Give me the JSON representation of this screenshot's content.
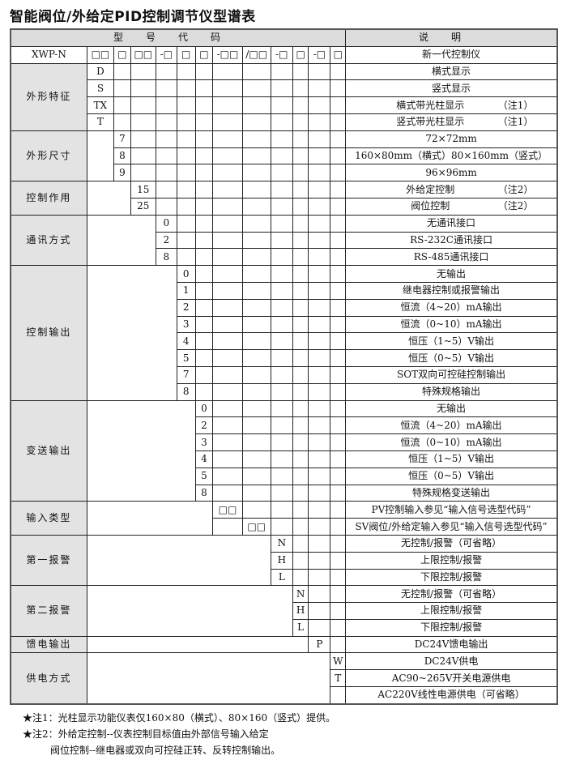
{
  "title": "智能阀位/外给定PID控制调节仪型谱表",
  "header": {
    "code_label": "型号代码",
    "desc_label": "说明"
  },
  "model_row": {
    "label": "XWP-N",
    "codes": [
      "□□",
      "□",
      "□□",
      "-□",
      "□",
      "□",
      "-□□",
      "/□□",
      "-□",
      "□",
      "-□",
      "□"
    ],
    "desc": "新一代控制仪"
  },
  "groups": [
    {
      "label": "外形特征",
      "rows": [
        {
          "col": 1,
          "code": "D",
          "desc": "横式显示"
        },
        {
          "col": 1,
          "code": "S",
          "desc": "竖式显示"
        },
        {
          "col": 1,
          "code": "TX",
          "desc": "横式带光柱显示",
          "note": "（注1）"
        },
        {
          "col": 1,
          "code": "T",
          "desc": "竖式带光柱显示",
          "note": "（注1）"
        }
      ]
    },
    {
      "label": "外形尺寸",
      "rows": [
        {
          "col": 2,
          "code": "7",
          "desc": "72×72mm"
        },
        {
          "col": 2,
          "code": "8",
          "desc": "160×80mm（横式）80×160mm（竖式）"
        },
        {
          "col": 2,
          "code": "9",
          "desc": "96×96mm"
        }
      ]
    },
    {
      "label": "控制作用",
      "rows": [
        {
          "col": 3,
          "code": "15",
          "desc": "外给定控制",
          "note": "（注2）"
        },
        {
          "col": 3,
          "code": "25",
          "desc": "阀位控制",
          "note": "（注2）"
        }
      ]
    },
    {
      "label": "通讯方式",
      "rows": [
        {
          "col": 4,
          "code": "0",
          "desc": "无通讯接口"
        },
        {
          "col": 4,
          "code": "2",
          "desc": "RS-232C通讯接口"
        },
        {
          "col": 4,
          "code": "8",
          "desc": "RS-485通讯接口"
        }
      ]
    },
    {
      "label": "控制输出",
      "rows": [
        {
          "col": 5,
          "code": "0",
          "desc": "无输出"
        },
        {
          "col": 5,
          "code": "1",
          "desc": "继电器控制或报警输出"
        },
        {
          "col": 5,
          "code": "2",
          "desc": "恒流（4~20）mA输出"
        },
        {
          "col": 5,
          "code": "3",
          "desc": "恒流（0~10）mA输出"
        },
        {
          "col": 5,
          "code": "4",
          "desc": "恒压（1~5）V输出"
        },
        {
          "col": 5,
          "code": "5",
          "desc": "恒压（0~5）V输出"
        },
        {
          "col": 5,
          "code": "7",
          "desc": "SOT双向可控硅控制输出"
        },
        {
          "col": 5,
          "code": "8",
          "desc": "特殊规格输出"
        }
      ]
    },
    {
      "label": "变送输出",
      "rows": [
        {
          "col": 6,
          "code": "0",
          "desc": "无输出"
        },
        {
          "col": 6,
          "code": "2",
          "desc": "恒流（4~20）mA输出"
        },
        {
          "col": 6,
          "code": "3",
          "desc": "恒流（0~10）mA输出"
        },
        {
          "col": 6,
          "code": "4",
          "desc": "恒压（1~5）V输出"
        },
        {
          "col": 6,
          "code": "5",
          "desc": "恒压（0~5）V输出"
        },
        {
          "col": 6,
          "code": "8",
          "desc": "特殊规格变送输出"
        }
      ]
    },
    {
      "label": "输入类型",
      "rows": [
        {
          "col": 7,
          "code": "□□",
          "desc": "PV控制输入参见“输入信号选型代码”"
        },
        {
          "col": 8,
          "code": "□□",
          "desc": "SV阀位/外给定输入参见“输入信号选型代码”"
        }
      ]
    },
    {
      "label": "第一报警",
      "rows": [
        {
          "col": 9,
          "code": "N",
          "desc": "无控制/报警（可省略）"
        },
        {
          "col": 9,
          "code": "H",
          "desc": "上限控制/报警"
        },
        {
          "col": 9,
          "code": "L",
          "desc": "下限控制/报警"
        }
      ]
    },
    {
      "label": "第二报警",
      "rows": [
        {
          "col": 10,
          "code": "N",
          "desc": "无控制/报警（可省略）"
        },
        {
          "col": 10,
          "code": "H",
          "desc": "上限控制/报警"
        },
        {
          "col": 10,
          "code": "L",
          "desc": "下限控制/报警"
        }
      ]
    },
    {
      "label": "馈电输出",
      "rows": [
        {
          "col": 11,
          "code": "P",
          "desc": "DC24V馈电输出"
        }
      ]
    },
    {
      "label": "供电方式",
      "rows": [
        {
          "col": 12,
          "code": "W",
          "desc": "DC24V供电"
        },
        {
          "col": 12,
          "code": "T",
          "desc": "AC90~265V开关电源供电"
        },
        {
          "col": 12,
          "code": "",
          "desc": "AC220V线性电源供电（可省略）"
        }
      ]
    }
  ],
  "notes": [
    "★注1：光柱显示功能仪表仅160×80（横式）、80×160（竖式）提供。",
    "★注2：外给定控制--仪表控制目标值由外部信号输入给定",
    "阀位控制--继电器或双向可控硅正转、反转控制输出。"
  ]
}
